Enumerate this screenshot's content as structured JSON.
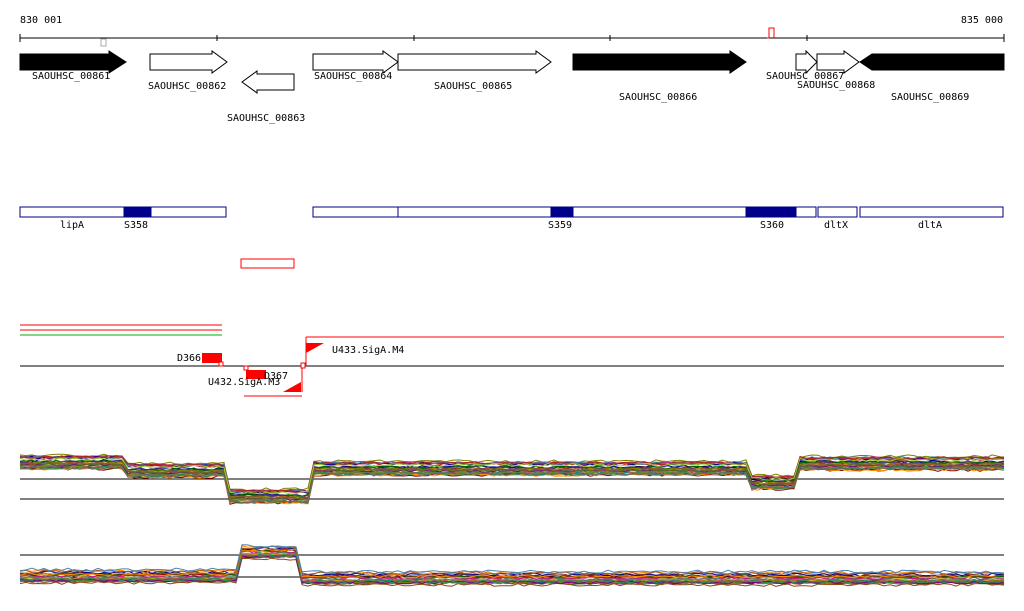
{
  "ruler": {
    "start_label": "830 001",
    "end_label": "835 000"
  },
  "genes": [
    {
      "name": "SAOUHSC_00861",
      "strand": "+",
      "filled": true
    },
    {
      "name": "SAOUHSC_00862",
      "strand": "+",
      "filled": false
    },
    {
      "name": "SAOUHSC_00863",
      "strand": "-",
      "filled": false
    },
    {
      "name": "SAOUHSC_00864",
      "strand": "+",
      "filled": false
    },
    {
      "name": "SAOUHSC_00865",
      "strand": "+",
      "filled": false
    },
    {
      "name": "SAOUHSC_00866",
      "strand": "+",
      "filled": true
    },
    {
      "name": "SAOUHSC_00867",
      "strand": "+",
      "filled": false
    },
    {
      "name": "SAOUHSC_00868",
      "strand": "+",
      "filled": false
    },
    {
      "name": "SAOUHSC_00869",
      "strand": "+",
      "filled": true
    }
  ],
  "operon_labels": [
    "lipA",
    "S358",
    "S359",
    "S360",
    "dltX",
    "dltA"
  ],
  "feature_labels": [
    "D366",
    "D367",
    "U432.SigA.M3",
    "U433.SigA.M4"
  ],
  "colors": {
    "gene_fill": "#000000",
    "operon_border": "#000080",
    "operon_fill": "#00008b",
    "feature": "#ff0000",
    "green_track": "#00b000"
  }
}
